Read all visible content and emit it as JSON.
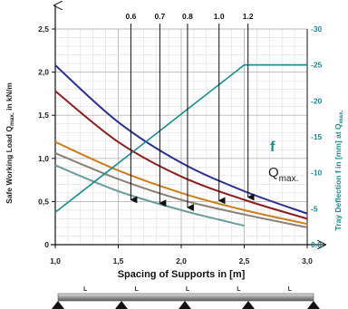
{
  "chart_data": {
    "type": "line",
    "x_title": "Spacing of Supports in [m]",
    "y_title_main": "Safe Working Load Q",
    "y_title_sub": "max.",
    "y_title_unit": " in kN/m",
    "y2_title_main": "Tray Deflection f in [mm] at Q",
    "y2_title_sub": "max.",
    "xlim": [
      1.0,
      3.0
    ],
    "ylim": [
      0,
      2.5
    ],
    "y2lim": [
      0,
      30
    ],
    "x_ticks": [
      "1,0",
      "1,5",
      "2,0",
      "2,5",
      "3,0"
    ],
    "y_ticks": [
      "0",
      "0,5",
      "1,0",
      "1,5",
      "2,0",
      "2,5"
    ],
    "y2_ticks": [
      "0.0",
      "5",
      "10",
      "15",
      "20",
      "25",
      "30"
    ],
    "grid": true,
    "load_series": [
      {
        "label": "1.2",
        "color": "#2b2f8f",
        "points": [
          [
            1.0,
            2.08
          ],
          [
            1.5,
            1.42
          ],
          [
            2.0,
            0.95
          ],
          [
            2.5,
            0.62
          ],
          [
            3.0,
            0.36
          ]
        ]
      },
      {
        "label": "1.0",
        "color": "#8b1e1e",
        "points": [
          [
            1.0,
            1.78
          ],
          [
            1.5,
            1.19
          ],
          [
            2.0,
            0.79
          ],
          [
            2.5,
            0.52
          ],
          [
            3.0,
            0.3
          ]
        ]
      },
      {
        "label": "0.8",
        "color": "#c97d1c",
        "points": [
          [
            1.0,
            1.19
          ],
          [
            1.5,
            0.86
          ],
          [
            2.0,
            0.6
          ],
          [
            2.5,
            0.4
          ],
          [
            3.0,
            0.24
          ]
        ]
      },
      {
        "label": "0.7",
        "color": "#8a7f78",
        "points": [
          [
            1.0,
            1.06
          ],
          [
            1.5,
            0.76
          ],
          [
            2.0,
            0.52
          ],
          [
            2.5,
            0.35
          ],
          [
            3.0,
            0.2
          ]
        ]
      },
      {
        "label": "0.6",
        "color": "#6e9c9c",
        "points": [
          [
            1.0,
            0.92
          ],
          [
            1.5,
            0.62
          ],
          [
            2.0,
            0.4
          ],
          [
            2.3,
            0.29
          ],
          [
            2.5,
            0.22
          ]
        ]
      }
    ],
    "arrows": [
      {
        "label": "0.6",
        "x": 1.6,
        "y": 0.5
      },
      {
        "label": "0.7",
        "x": 1.83,
        "y": 0.46
      },
      {
        "label": "0.8",
        "x": 2.05,
        "y": 0.41
      },
      {
        "label": "1.0",
        "x": 2.3,
        "y": 0.49
      },
      {
        "label": "1.2",
        "x": 2.53,
        "y": 0.53
      }
    ],
    "deflection": {
      "label": "f",
      "color": "#1a8c8c",
      "points": [
        [
          1.0,
          4.5
        ],
        [
          2.5,
          25
        ],
        [
          3.0,
          25
        ]
      ]
    },
    "load_label": "Q",
    "load_label_sub": "max.",
    "span_labels": [
      "L",
      "L",
      "L",
      "L",
      "L"
    ]
  }
}
